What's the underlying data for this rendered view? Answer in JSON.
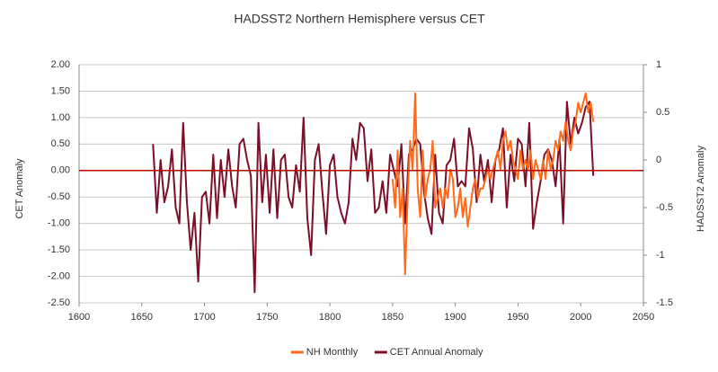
{
  "chart_data": {
    "type": "line",
    "title": "HADSST2 Northern Hemisphere versus CET",
    "ylabel": "CET Anomaly",
    "y2label": "HADSST2 Anomaly",
    "xlim": [
      1600,
      2050
    ],
    "xticks": [
      1600,
      1650,
      1700,
      1750,
      1800,
      1850,
      1900,
      1950,
      2000,
      2050
    ],
    "ylim": [
      -2.5,
      2
    ],
    "yticks": [
      {
        "value": 2,
        "label": "2.00"
      },
      {
        "value": 1.5,
        "label": "1.50"
      },
      {
        "value": 1,
        "label": "1.00"
      },
      {
        "value": 0.5,
        "label": "0.50"
      },
      {
        "value": 0,
        "label": "0.00"
      },
      {
        "value": -0.5,
        "label": "-0.50"
      },
      {
        "value": -1,
        "label": "-1.00"
      },
      {
        "value": -1.5,
        "label": "-1.50"
      },
      {
        "value": -2,
        "label": "-2.00"
      },
      {
        "value": -2.5,
        "label": "-2.50"
      }
    ],
    "y2lim": [
      -1.5,
      1
    ],
    "y2ticks": [
      1,
      0.5,
      0,
      -0.5,
      -1,
      -1.5
    ],
    "grid": true,
    "reference_line": {
      "value": 0,
      "color": "#c00000"
    },
    "legend": "bottom",
    "series": [
      {
        "name": "NH Monthly",
        "color": "#ff6a1a",
        "axis": "y2",
        "x": [
          1850,
          1852,
          1854,
          1856,
          1858,
          1860,
          1862,
          1864,
          1866,
          1868,
          1870,
          1872,
          1874,
          1876,
          1878,
          1880,
          1882,
          1884,
          1886,
          1888,
          1890,
          1892,
          1894,
          1896,
          1898,
          1900,
          1902,
          1904,
          1906,
          1908,
          1910,
          1912,
          1914,
          1916,
          1918,
          1920,
          1922,
          1924,
          1926,
          1928,
          1930,
          1932,
          1934,
          1936,
          1938,
          1940,
          1942,
          1944,
          1946,
          1948,
          1950,
          1952,
          1954,
          1956,
          1958,
          1960,
          1962,
          1964,
          1966,
          1968,
          1970,
          1972,
          1974,
          1976,
          1978,
          1980,
          1982,
          1984,
          1986,
          1988,
          1990,
          1992,
          1994,
          1996,
          1998,
          2000,
          2002,
          2004,
          2006,
          2008,
          2010
        ],
        "values": [
          -0.2,
          -0.5,
          0.1,
          -0.6,
          -0.3,
          -1.2,
          -0.4,
          0.2,
          -0.1,
          0.7,
          -0.3,
          -0.6,
          0.1,
          -0.4,
          -0.2,
          -0.1,
          0.2,
          -0.5,
          -0.4,
          -0.3,
          -0.5,
          -0.3,
          -0.4,
          -0.1,
          -0.2,
          -0.6,
          -0.5,
          -0.3,
          -0.6,
          -0.4,
          -0.7,
          -0.5,
          -0.3,
          -0.2,
          -0.4,
          -0.3,
          -0.3,
          -0.2,
          -0.1,
          -0.2,
          -0.1,
          0.0,
          0.1,
          -0.1,
          0.2,
          0.3,
          0.1,
          0.2,
          0.0,
          -0.1,
          -0.2,
          0.1,
          -0.1,
          0.0,
          -0.1,
          0.1,
          -0.2,
          0.0,
          -0.1,
          -0.2,
          0.0,
          -0.2,
          0.1,
          -0.1,
          0.0,
          0.2,
          0.1,
          0.3,
          0.2,
          0.4,
          0.2,
          0.1,
          0.3,
          0.4,
          0.6,
          0.5,
          0.6,
          0.7,
          0.5,
          0.6,
          0.4
        ]
      },
      {
        "name": "CET Annual Anomaly",
        "color": "#7b0f2a",
        "axis": "y",
        "x": [
          1659,
          1662,
          1665,
          1668,
          1671,
          1674,
          1677,
          1680,
          1683,
          1686,
          1689,
          1692,
          1695,
          1698,
          1701,
          1704,
          1707,
          1710,
          1713,
          1716,
          1719,
          1722,
          1725,
          1728,
          1731,
          1734,
          1737,
          1740,
          1743,
          1746,
          1749,
          1752,
          1755,
          1758,
          1761,
          1764,
          1767,
          1770,
          1773,
          1776,
          1779,
          1782,
          1785,
          1788,
          1791,
          1794,
          1797,
          1800,
          1803,
          1806,
          1809,
          1812,
          1815,
          1818,
          1821,
          1824,
          1827,
          1830,
          1833,
          1836,
          1839,
          1842,
          1845,
          1848,
          1851,
          1854,
          1857,
          1860,
          1863,
          1866,
          1869,
          1872,
          1875,
          1878,
          1881,
          1884,
          1887,
          1890,
          1893,
          1896,
          1899,
          1902,
          1905,
          1908,
          1911,
          1914,
          1917,
          1920,
          1923,
          1926,
          1929,
          1932,
          1935,
          1938,
          1941,
          1944,
          1947,
          1950,
          1953,
          1956,
          1959,
          1962,
          1965,
          1968,
          1971,
          1974,
          1977,
          1980,
          1983,
          1986,
          1989,
          1992,
          1995,
          1998,
          2001,
          2004,
          2007,
          2010
        ],
        "values": [
          0.5,
          -0.8,
          0.2,
          -0.6,
          -0.3,
          0.4,
          -0.7,
          -1.0,
          0.9,
          -0.6,
          -1.5,
          -0.8,
          -2.1,
          -0.5,
          -0.4,
          -1.0,
          0.3,
          -0.9,
          0.2,
          -0.5,
          0.4,
          -0.3,
          -0.7,
          0.5,
          0.6,
          0.2,
          -0.1,
          -2.3,
          0.9,
          -0.6,
          0.3,
          -0.8,
          0.4,
          -0.9,
          0.2,
          0.3,
          -0.5,
          -0.7,
          0.1,
          -0.4,
          1.0,
          -0.9,
          -1.6,
          0.2,
          0.5,
          -0.4,
          -1.2,
          0.1,
          0.3,
          -0.5,
          -0.8,
          -1.0,
          -0.6,
          0.6,
          0.2,
          0.9,
          0.8,
          -0.2,
          0.4,
          -0.8,
          -0.7,
          -0.2,
          -0.8,
          0.3,
          0.0,
          -0.3,
          0.5,
          -1.0,
          0.3,
          0.4,
          0.6,
          0.5,
          -0.4,
          -0.9,
          -1.2,
          0.3,
          -0.8,
          -1.0,
          0.1,
          0.2,
          0.6,
          -0.3,
          -0.2,
          -0.3,
          0.8,
          0.4,
          -0.6,
          0.3,
          -0.2,
          0.2,
          -0.6,
          0.2,
          0.4,
          0.8,
          -0.7,
          0.3,
          -0.2,
          0.6,
          0.5,
          -0.3,
          0.9,
          -1.1,
          -0.6,
          -0.2,
          0.3,
          0.4,
          0.2,
          -0.3,
          0.6,
          -1.0,
          1.3,
          0.5,
          1.0,
          0.7,
          0.9,
          1.2,
          1.3,
          -0.1
        ]
      }
    ]
  }
}
